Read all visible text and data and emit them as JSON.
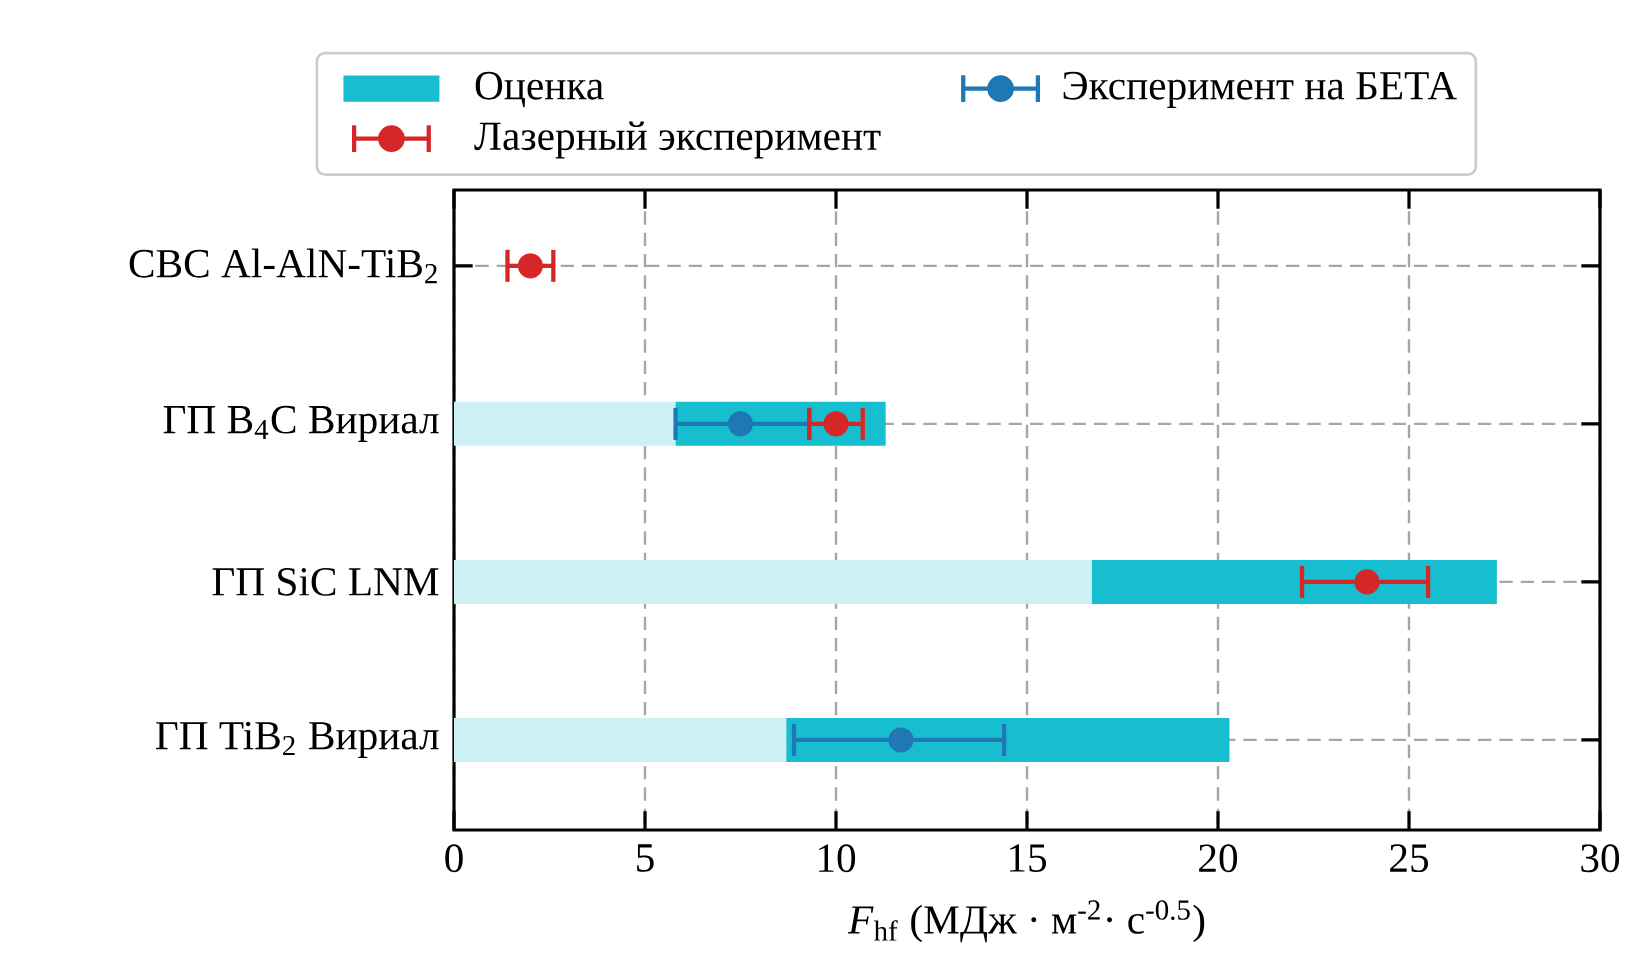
{
  "chart_data": {
    "type": "bar",
    "orientation": "horizontal",
    "categories": [
      "СВС Al-AlN-TiB$_{2}$",
      "ГП B$_{4}$C Вириал",
      "ГП SiC LNM",
      "ГП TiB$_{2}$ Вириал"
    ],
    "series": [
      {
        "color": "#cdf0f4",
        "values": [
          null,
          5.8,
          16.7,
          8.7
        ]
      },
      {
        "name": "Оценка",
        "color": "#17becf",
        "base": [
          null,
          5.8,
          16.7,
          8.7
        ],
        "values": [
          null,
          5.5,
          10.6,
          11.6
        ]
      },
      {
        "type": "scatter",
        "name": "Эксперимент на БЕТА",
        "color": "#1f77b4",
        "marker": "circle",
        "values": [
          null,
          7.5,
          null,
          11.7
        ],
        "errors": [
          null,
          [
            5.8,
            9.3
          ],
          null,
          [
            8.9,
            14.4
          ]
        ]
      },
      {
        "type": "scatter",
        "name": "Лазерный эксперимент",
        "color": "#d62728",
        "marker": "circle",
        "values": [
          2.0,
          10.0,
          23.9,
          null
        ],
        "errors": [
          [
            1.4,
            2.6
          ],
          [
            9.3,
            10.7
          ],
          [
            22.2,
            25.5
          ],
          null
        ]
      }
    ],
    "xlim": [
      0,
      30
    ],
    "xticks": [
      0,
      5,
      10,
      15,
      20,
      25,
      30
    ],
    "xlabel": "*F*$_{hf}$ (МДж · м$^{-2}$· с$^{-0.5}$)",
    "grid": true,
    "legend": "top",
    "line_style": "dashed"
  }
}
